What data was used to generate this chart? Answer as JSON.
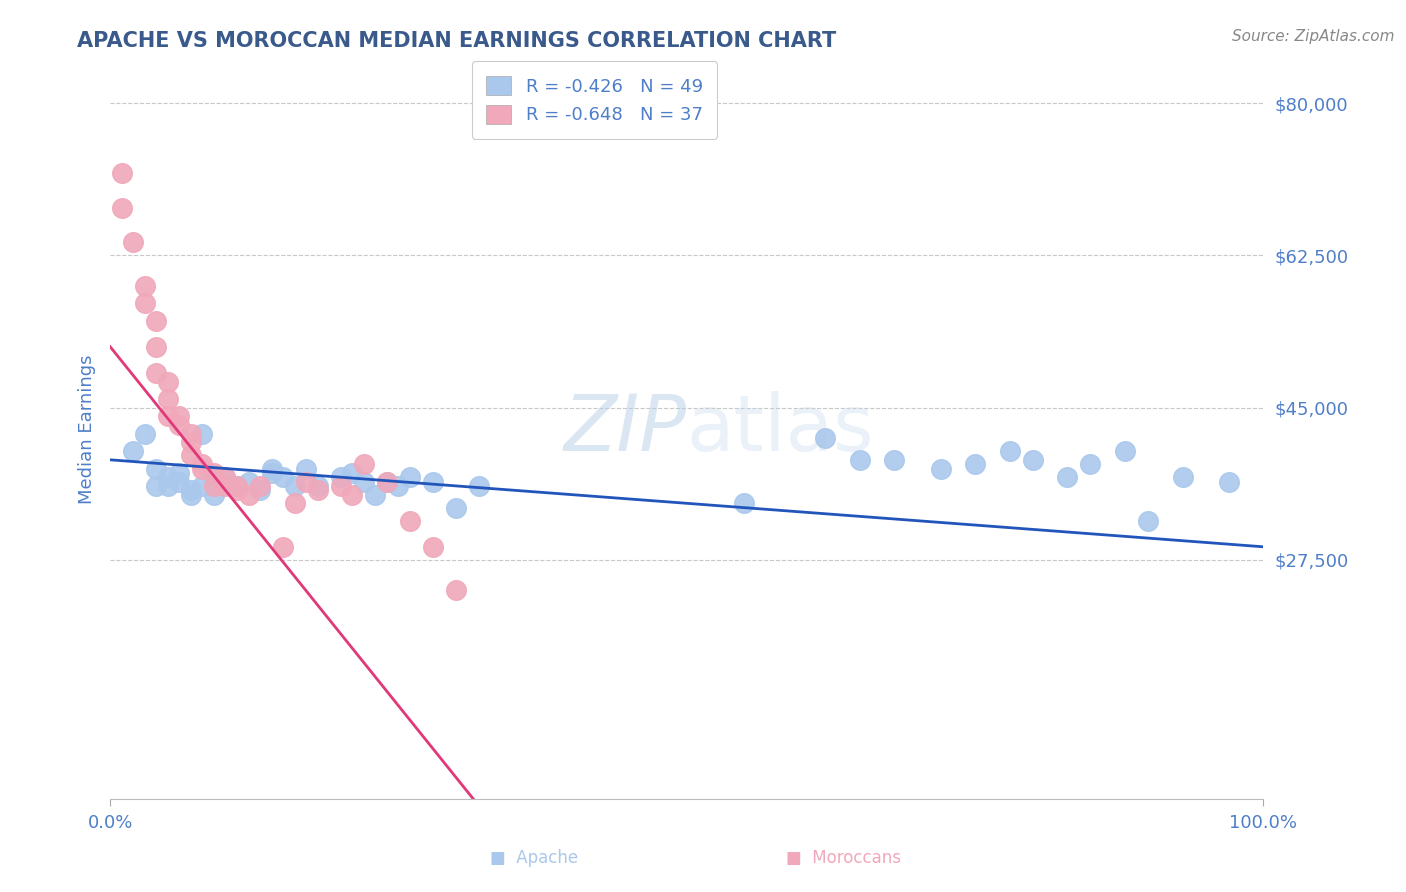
{
  "title": "APACHE VS MOROCCAN MEDIAN EARNINGS CORRELATION CHART",
  "source": "Source: ZipAtlas.com",
  "ylabel": "Median Earnings",
  "ylim": [
    0,
    85000
  ],
  "xlim": [
    0.0,
    1.0
  ],
  "legend_apache": "R = -0.426   N = 49",
  "legend_moroccan": "R = -0.648   N = 37",
  "watermark_zip": "ZIP",
  "watermark_atlas": "atlas",
  "title_color": "#3a5a8c",
  "source_color": "#888888",
  "axis_color": "#4f7fc9",
  "scatter_apache_color": "#aac8ec",
  "scatter_moroccan_color": "#f0a8ba",
  "trendline_apache_color": "#2255bb",
  "trendline_moroccan_color": "#e03878",
  "grid_color": "#c8c8c8",
  "apache_x": [
    0.02,
    0.03,
    0.04,
    0.04,
    0.05,
    0.05,
    0.06,
    0.06,
    0.07,
    0.07,
    0.08,
    0.08,
    0.09,
    0.09,
    0.1,
    0.1,
    0.11,
    0.12,
    0.13,
    0.14,
    0.14,
    0.15,
    0.16,
    0.17,
    0.18,
    0.2,
    0.21,
    0.22,
    0.23,
    0.24,
    0.25,
    0.26,
    0.28,
    0.3,
    0.32,
    0.55,
    0.62,
    0.65,
    0.68,
    0.72,
    0.75,
    0.78,
    0.8,
    0.83,
    0.85,
    0.88,
    0.9,
    0.93,
    0.97
  ],
  "apache_y": [
    40000,
    42000,
    38000,
    36000,
    36000,
    37000,
    36500,
    37500,
    35500,
    35000,
    42000,
    36000,
    37000,
    35000,
    37000,
    36500,
    36000,
    36500,
    35500,
    37500,
    38000,
    37000,
    36000,
    38000,
    36000,
    37000,
    37500,
    36500,
    35000,
    36500,
    36000,
    37000,
    36500,
    33500,
    36000,
    34000,
    41500,
    39000,
    39000,
    38000,
    38500,
    40000,
    39000,
    37000,
    38500,
    40000,
    32000,
    37000,
    36500
  ],
  "moroccan_x": [
    0.01,
    0.01,
    0.02,
    0.03,
    0.03,
    0.04,
    0.04,
    0.04,
    0.05,
    0.05,
    0.05,
    0.06,
    0.06,
    0.07,
    0.07,
    0.07,
    0.08,
    0.08,
    0.09,
    0.09,
    0.1,
    0.1,
    0.11,
    0.11,
    0.12,
    0.13,
    0.15,
    0.16,
    0.17,
    0.18,
    0.2,
    0.21,
    0.22,
    0.24,
    0.26,
    0.28,
    0.3
  ],
  "moroccan_y": [
    72000,
    68000,
    64000,
    59000,
    57000,
    55000,
    52000,
    49000,
    48000,
    46000,
    44000,
    44000,
    43000,
    42000,
    41000,
    39500,
    38500,
    38000,
    37500,
    36000,
    37000,
    36000,
    36000,
    35500,
    35000,
    36000,
    29000,
    34000,
    36500,
    35500,
    36000,
    35000,
    38500,
    36500,
    32000,
    29000,
    24000
  ],
  "apache_trend_x0": 0.0,
  "apache_trend_x1": 1.0,
  "apache_trend_y0": 39000,
  "apache_trend_y1": 29000,
  "moroccan_trend_x0": 0.0,
  "moroccan_trend_x1": 0.315,
  "moroccan_trend_y0": 52000,
  "moroccan_trend_y1": 0
}
